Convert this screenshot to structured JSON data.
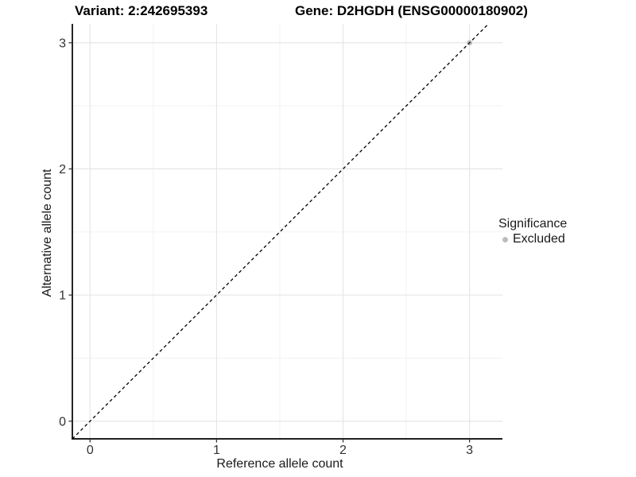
{
  "figure": {
    "title_left": "Variant: 2:242695393",
    "title_right": "Gene: D2HGDH (ENSG00000180902)"
  },
  "axes": {
    "x_label": "Reference allele count",
    "y_label": "Alternative allele count"
  },
  "legend": {
    "title": "Significance",
    "items": [
      {
        "label": "Excluded",
        "color": "#bdbdbd",
        "marker": "circle-icon"
      }
    ]
  },
  "chart_data": {
    "type": "scatter",
    "title": "Variant: 2:242695393  /  Gene: D2HGDH (ENSG00000180902)",
    "xlabel": "Reference allele count",
    "ylabel": "Alternative allele count",
    "xlim": [
      -0.14,
      3.26
    ],
    "ylim": [
      -0.14,
      3.15
    ],
    "xticks": [
      0,
      1,
      2,
      3
    ],
    "yticks": [
      0,
      1,
      2,
      3
    ],
    "x_minor": [
      0.5,
      1.5,
      2.5
    ],
    "y_minor": [
      0.5,
      1.5,
      2.5
    ],
    "grid": "major+minor",
    "legend_position": "right",
    "reference_line": {
      "type": "identity",
      "style": "dashed",
      "color": "#000000",
      "from": [
        -0.14,
        -0.14
      ],
      "to": [
        3.15,
        3.15
      ]
    },
    "series": [
      {
        "name": "Excluded",
        "color": "#bdbdbd",
        "points": [
          {
            "x": 3,
            "y": 3
          }
        ]
      }
    ],
    "style": {
      "background": "#ffffff",
      "grid_major": "#e4e4e4",
      "grid_minor": "#f1f1f1",
      "axis_line": "#000000",
      "tick_mark": "#333333",
      "tick_label": "#333333",
      "point_color": "#bdbdbd"
    }
  }
}
